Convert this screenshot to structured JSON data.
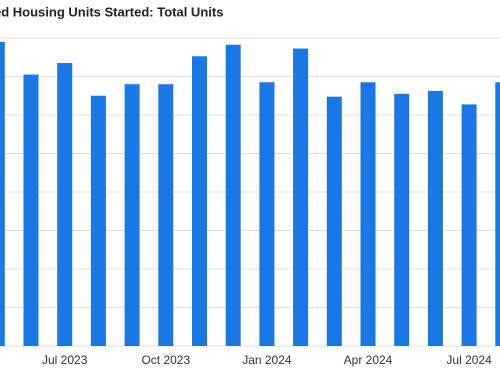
{
  "chart_data": {
    "type": "bar",
    "title": "ed Housing Units Started: Total Units",
    "categories": [
      null,
      null,
      "Jul 2023",
      null,
      null,
      "Oct 2023",
      null,
      null,
      "Jan 2024",
      null,
      null,
      "Apr 2024",
      null,
      null,
      "Jul 2024",
      null
    ],
    "values": [
      1580,
      1410,
      1470,
      1300,
      1360,
      1360,
      1505,
      1565,
      1370,
      1545,
      1295,
      1370,
      1310,
      1325,
      1255,
      1370
    ],
    "color": "#1a77e6",
    "ylim": [
      0,
      1600
    ],
    "yticks": [
      0,
      200,
      400,
      600,
      800,
      1000,
      1200,
      1400,
      1600
    ],
    "grid": true
  }
}
